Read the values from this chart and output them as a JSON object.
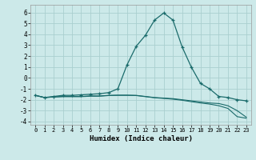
{
  "xlabel": "Humidex (Indice chaleur)",
  "bg_color": "#cce9e9",
  "grid_color": "#aacfcf",
  "line_color": "#1a6b6b",
  "xlim": [
    -0.5,
    23.5
  ],
  "ylim": [
    -4.3,
    6.7
  ],
  "xticks": [
    0,
    1,
    2,
    3,
    4,
    5,
    6,
    7,
    8,
    9,
    10,
    11,
    12,
    13,
    14,
    15,
    16,
    17,
    18,
    19,
    20,
    21,
    22,
    23
  ],
  "yticks": [
    -4,
    -3,
    -2,
    -1,
    0,
    1,
    2,
    3,
    4,
    5,
    6
  ],
  "line1_x": [
    0,
    1,
    2,
    3,
    4,
    5,
    6,
    7,
    8,
    9,
    10,
    11,
    12,
    13,
    14,
    15,
    16,
    17,
    18,
    19,
    20,
    21,
    22,
    23
  ],
  "line1_y": [
    -1.6,
    -1.8,
    -1.7,
    -1.6,
    -1.6,
    -1.55,
    -1.5,
    -1.45,
    -1.35,
    -1.0,
    1.2,
    2.9,
    3.9,
    5.3,
    5.95,
    5.3,
    2.85,
    1.0,
    -0.5,
    -1.0,
    -1.7,
    -1.8,
    -2.0,
    -2.1
  ],
  "line2_x": [
    0,
    1,
    2,
    3,
    4,
    5,
    6,
    7,
    8,
    9,
    10,
    11,
    12,
    13,
    14,
    15,
    16,
    17,
    18,
    19,
    20,
    21,
    22,
    23
  ],
  "line2_y": [
    -1.6,
    -1.8,
    -1.75,
    -1.7,
    -1.7,
    -1.7,
    -1.65,
    -1.65,
    -1.6,
    -1.58,
    -1.58,
    -1.6,
    -1.7,
    -1.8,
    -1.85,
    -1.9,
    -2.0,
    -2.1,
    -2.2,
    -2.3,
    -2.35,
    -2.55,
    -3.0,
    -3.6
  ],
  "line3_x": [
    0,
    1,
    2,
    3,
    4,
    5,
    6,
    7,
    8,
    9,
    10,
    11,
    12,
    13,
    14,
    15,
    16,
    17,
    18,
    19,
    20,
    21,
    22,
    23
  ],
  "line3_y": [
    -1.6,
    -1.8,
    -1.75,
    -1.72,
    -1.72,
    -1.72,
    -1.68,
    -1.68,
    -1.62,
    -1.6,
    -1.6,
    -1.62,
    -1.72,
    -1.82,
    -1.88,
    -1.95,
    -2.05,
    -2.18,
    -2.3,
    -2.4,
    -2.55,
    -2.8,
    -3.55,
    -3.7
  ]
}
